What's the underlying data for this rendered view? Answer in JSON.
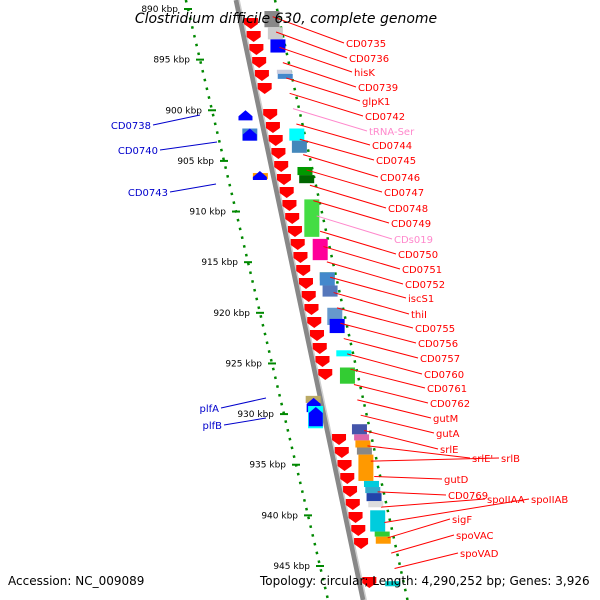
{
  "title": "Clostridium difficile 630, complete genome",
  "footer": {
    "accession": "Accession: NC_009089",
    "topology": "Topology: circular; Length: 4,290,252 bp; Genes: 3,926"
  },
  "colors": {
    "forward_label": "#ff0000",
    "reverse_label": "#0000cc",
    "rna_label": "#ff88cc",
    "scale_dots": "#008800",
    "backbone": "#888888"
  },
  "kbp_ticks": [
    {
      "text": "890 kbp",
      "kb": 890
    },
    {
      "text": "895 kbp",
      "kb": 895
    },
    {
      "text": "900 kbp",
      "kb": 900
    },
    {
      "text": "905 kbp",
      "kb": 905
    },
    {
      "text": "910 kbp",
      "kb": 910
    },
    {
      "text": "915 kbp",
      "kb": 915
    },
    {
      "text": "920 kbp",
      "kb": 920
    },
    {
      "text": "925 kbp",
      "kb": 925
    },
    {
      "text": "930 kbp",
      "kb": 930
    },
    {
      "text": "935 kbp",
      "kb": 935
    },
    {
      "text": "940 kbp",
      "kb": 940
    },
    {
      "text": "945 kbp",
      "kb": 945
    }
  ],
  "right_labels": [
    {
      "text": "CD0735",
      "kind": "gene"
    },
    {
      "text": "CD0736",
      "kind": "gene"
    },
    {
      "text": "hisK",
      "kind": "gene"
    },
    {
      "text": "CD0739",
      "kind": "gene"
    },
    {
      "text": "glpK1",
      "kind": "gene"
    },
    {
      "text": "CD0742",
      "kind": "gene"
    },
    {
      "text": "tRNA-Ser",
      "kind": "rna"
    },
    {
      "text": "CD0744",
      "kind": "gene"
    },
    {
      "text": "CD0745",
      "kind": "gene"
    },
    {
      "text": "CD0746",
      "kind": "gene"
    },
    {
      "text": "CD0747",
      "kind": "gene"
    },
    {
      "text": "CD0748",
      "kind": "gene"
    },
    {
      "text": "CD0749",
      "kind": "gene"
    },
    {
      "text": "CDs019",
      "kind": "rna"
    },
    {
      "text": "CD0750",
      "kind": "gene"
    },
    {
      "text": "CD0751",
      "kind": "gene"
    },
    {
      "text": "CD0752",
      "kind": "gene"
    },
    {
      "text": "iscS1",
      "kind": "gene"
    },
    {
      "text": "thiI",
      "kind": "gene"
    },
    {
      "text": "CD0755",
      "kind": "gene"
    },
    {
      "text": "CD0756",
      "kind": "gene"
    },
    {
      "text": "CD0757",
      "kind": "gene"
    },
    {
      "text": "CD0760",
      "kind": "gene"
    },
    {
      "text": "CD0761",
      "kind": "gene"
    },
    {
      "text": "CD0762",
      "kind": "gene"
    },
    {
      "text": "gutM",
      "kind": "gene"
    },
    {
      "text": "gutA",
      "kind": "gene"
    },
    {
      "text": "srlE",
      "kind": "gene"
    },
    {
      "text": "srlE'",
      "kind": "gene"
    },
    {
      "text": "srlB",
      "kind": "gene"
    },
    {
      "text": "gutD",
      "kind": "gene"
    },
    {
      "text": "CD0769",
      "kind": "gene"
    },
    {
      "text": "spoIIAA",
      "kind": "gene"
    },
    {
      "text": "spoIIAB",
      "kind": "gene"
    },
    {
      "text": "sigF",
      "kind": "gene"
    },
    {
      "text": "spoVAC",
      "kind": "gene"
    },
    {
      "text": "spoVAD",
      "kind": "gene"
    }
  ],
  "left_labels": [
    {
      "text": "CD0738"
    },
    {
      "text": "CD0740"
    },
    {
      "text": "CD0743"
    },
    {
      "text": "plfA"
    },
    {
      "text": "plfB"
    }
  ],
  "outer_features": [
    {
      "kb": 890.2,
      "kb_end": 891.8,
      "color": "#888888"
    },
    {
      "kb": 891.8,
      "kb_end": 893.0,
      "color": "#cccccc"
    },
    {
      "kb": 893.0,
      "kb_end": 894.3,
      "color": "#0000ff"
    },
    {
      "kb": 896.0,
      "kb_end": 896.4,
      "color": "#ccccdd"
    },
    {
      "kb": 896.4,
      "kb_end": 896.9,
      "color": "#4488cc"
    },
    {
      "kb": 901.8,
      "kb_end": 903.0,
      "color": "#00ffff"
    },
    {
      "kb": 903.0,
      "kb_end": 904.2,
      "color": "#4488bb"
    },
    {
      "kb": 905.6,
      "kb_end": 906.4,
      "color": "#009900"
    },
    {
      "kb": 906.4,
      "kb_end": 907.2,
      "color": "#006600"
    },
    {
      "kb": 908.8,
      "kb_end": 912.5,
      "color": "#44dd44"
    },
    {
      "kb": 912.7,
      "kb_end": 914.8,
      "color": "#ff0099"
    },
    {
      "kb": 916.0,
      "kb_end": 916.8,
      "color": "#44bb44"
    },
    {
      "kb": 916.0,
      "kb_end": 917.3,
      "color": "#4488cc"
    },
    {
      "kb": 917.3,
      "kb_end": 918.4,
      "color": "#5577bb"
    },
    {
      "kb": 919.5,
      "kb_end": 921.2,
      "color": "#6699cc"
    },
    {
      "kb": 920.6,
      "kb_end": 922.0,
      "color": "#0000ff"
    },
    {
      "kb": 923.7,
      "kb_end": 924.3,
      "color": "#00ffff"
    },
    {
      "kb": 925.4,
      "kb_end": 927.0,
      "color": "#33cc33"
    },
    {
      "kb": 931.0,
      "kb_end": 932.0,
      "color": "#4455aa"
    },
    {
      "kb": 932.0,
      "kb_end": 932.6,
      "color": "#dd66aa"
    },
    {
      "kb": 932.6,
      "kb_end": 933.3,
      "color": "#ff9900"
    },
    {
      "kb": 933.3,
      "kb_end": 934.0,
      "color": "#888888"
    },
    {
      "kb": 934.0,
      "kb_end": 936.6,
      "color": "#ff9900"
    },
    {
      "kb": 936.6,
      "kb_end": 937.2,
      "color": "#00ccdd"
    },
    {
      "kb": 937.2,
      "kb_end": 937.8,
      "color": "#33aacc"
    },
    {
      "kb": 937.8,
      "kb_end": 938.6,
      "color": "#2244aa"
    },
    {
      "kb": 938.6,
      "kb_end": 939.2,
      "color": "#dddddd"
    },
    {
      "kb": 939.5,
      "kb_end": 941.6,
      "color": "#00ccdd"
    },
    {
      "kb": 941.6,
      "kb_end": 942.1,
      "color": "#33cc33"
    },
    {
      "kb": 942.1,
      "kb_end": 942.8,
      "color": "#ff9900"
    },
    {
      "kb": 946.5,
      "kb_end": 947.0,
      "color": "#00cccc"
    }
  ],
  "inner_features": [
    {
      "kb": 900.2,
      "kb_end": 901.0,
      "color": "#0000ff",
      "shape": "arrow"
    },
    {
      "kb": 901.8,
      "kb_end": 903.0,
      "color": "#4488cc",
      "shape": "box"
    },
    {
      "kb": 902.0,
      "kb_end": 903.0,
      "color": "#0000ff",
      "shape": "arrow"
    },
    {
      "kb": 906.2,
      "kb_end": 906.8,
      "color": "#ff9900",
      "shape": "box"
    },
    {
      "kb": 906.2,
      "kb_end": 906.8,
      "color": "#0000ff",
      "shape": "arrow"
    },
    {
      "kb": 928.2,
      "kb_end": 928.9,
      "color": "#bbaa66",
      "shape": "box"
    },
    {
      "kb": 928.6,
      "kb_end": 929.8,
      "color": "#0000ff",
      "shape": "arrow"
    },
    {
      "kb": 929.2,
      "kb_end": 931.4,
      "color": "#00ffff",
      "shape": "box"
    },
    {
      "kb": 929.5,
      "kb_end": 931.2,
      "color": "#0000ff",
      "shape": "arrow"
    }
  ]
}
